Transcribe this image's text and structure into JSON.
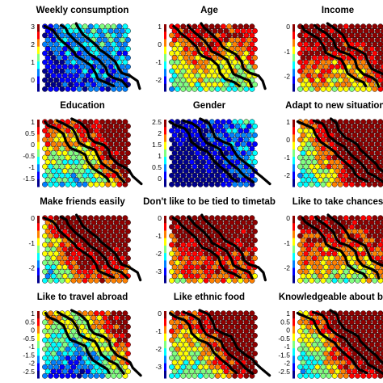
{
  "chart_data": [
    {
      "type": "heatmap",
      "title": "Weekly consumption",
      "colorbar_ticks": [
        "3",
        "2",
        "1",
        "0"
      ]
    },
    {
      "type": "heatmap",
      "title": "Age",
      "colorbar_ticks": [
        "1",
        "0",
        "-1",
        "-2"
      ]
    },
    {
      "type": "heatmap",
      "title": "Income",
      "colorbar_ticks": [
        "0",
        "-1",
        "-2"
      ]
    },
    {
      "type": "heatmap",
      "title": "Education",
      "colorbar_ticks": [
        "1",
        "0.5",
        "0",
        "-0.5",
        "-1",
        "-1.5"
      ]
    },
    {
      "type": "heatmap",
      "title": "Gender",
      "colorbar_ticks": [
        "2.5",
        "2",
        "1.5",
        "1",
        "0.5",
        "0"
      ]
    },
    {
      "type": "heatmap",
      "title": "Adapt to new situations",
      "colorbar_ticks": [
        "1",
        "0",
        "-1",
        "-2"
      ]
    },
    {
      "type": "heatmap",
      "title": "Make friends easily",
      "colorbar_ticks": [
        "0",
        "-1",
        "-2"
      ]
    },
    {
      "type": "heatmap",
      "title": "Don't like to be tied to timetab",
      "colorbar_ticks": [
        "0",
        "-1",
        "-2",
        "-3"
      ]
    },
    {
      "type": "heatmap",
      "title": "Like to take chances",
      "colorbar_ticks": [
        "0",
        "-1",
        "-2"
      ]
    },
    {
      "type": "heatmap",
      "title": "Like to travel abroad",
      "colorbar_ticks": [
        "1",
        "0.5",
        "0",
        "-0.5",
        "-1",
        "-1.5",
        "-2",
        "-2.5"
      ]
    },
    {
      "type": "heatmap",
      "title": "Like ethnic food",
      "colorbar_ticks": [
        "0",
        "-1",
        "-2",
        "-3"
      ]
    },
    {
      "type": "heatmap",
      "title": "Knowledgeable about beer",
      "colorbar_ticks": [
        "1",
        "0.5",
        "0",
        "-0.5",
        "-1",
        "-1.5",
        "-2",
        "-2.5"
      ]
    }
  ],
  "grid": {
    "columns": 15,
    "rows": 15
  },
  "colormap": [
    "#00008f",
    "#0000ff",
    "#0080ff",
    "#00ffff",
    "#80ff80",
    "#ffff00",
    "#ff8000",
    "#ff0000",
    "#8f0000"
  ]
}
